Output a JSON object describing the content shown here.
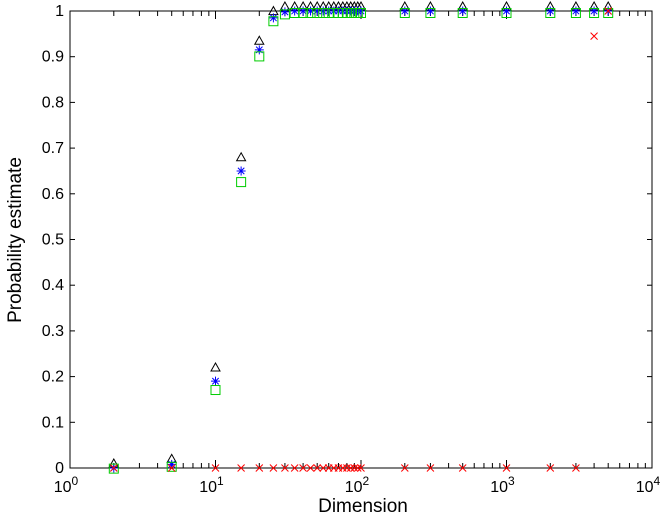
{
  "chart_data": {
    "type": "scatter",
    "xlabel": "Dimension",
    "ylabel": "Probability estimate",
    "xscale": "log",
    "xlim": [
      1,
      10000
    ],
    "ylim": [
      0,
      1
    ],
    "grid": false,
    "x_ticks": [
      {
        "value": 1,
        "base": "10",
        "exp": "0"
      },
      {
        "value": 10,
        "base": "10",
        "exp": "1"
      },
      {
        "value": 100,
        "base": "10",
        "exp": "2"
      },
      {
        "value": 1000,
        "base": "10",
        "exp": "3"
      },
      {
        "value": 10000,
        "base": "10",
        "exp": "4"
      }
    ],
    "y_ticks": [
      {
        "value": 0,
        "label": "0"
      },
      {
        "value": 0.1,
        "label": "0.1"
      },
      {
        "value": 0.2,
        "label": "0.2"
      },
      {
        "value": 0.3,
        "label": "0.3"
      },
      {
        "value": 0.4,
        "label": "0.4"
      },
      {
        "value": 0.5,
        "label": "0.5"
      },
      {
        "value": 0.6,
        "label": "0.6"
      },
      {
        "value": 0.7,
        "label": "0.7"
      },
      {
        "value": 0.8,
        "label": "0.8"
      },
      {
        "value": 0.9,
        "label": "0.9"
      },
      {
        "value": 1,
        "label": "1"
      }
    ],
    "series": [
      {
        "marker": "triangle",
        "color": "#000000",
        "x": [
          2,
          5,
          10,
          15,
          20,
          25,
          30,
          35,
          40,
          45,
          50,
          55,
          60,
          65,
          70,
          75,
          80,
          85,
          90,
          95,
          100,
          200,
          300,
          500,
          1000,
          2000,
          3000,
          4000,
          5000
        ],
        "y": [
          0,
          0.01,
          0.21,
          0.67,
          0.925,
          0.99,
          1,
          1,
          1,
          1,
          1,
          1,
          1,
          1,
          1,
          1,
          1,
          1,
          1,
          1,
          1,
          1,
          1,
          1,
          1,
          1,
          1,
          1,
          1
        ]
      },
      {
        "marker": "asterisk",
        "color": "#0000ff",
        "x": [
          2,
          5,
          10,
          15,
          20,
          25,
          30,
          35,
          40,
          45,
          50,
          55,
          60,
          65,
          70,
          75,
          80,
          85,
          90,
          95,
          100,
          200,
          300,
          500,
          1000,
          2000,
          3000,
          4000,
          5000
        ],
        "y": [
          0,
          0.008,
          0.19,
          0.65,
          0.915,
          0.985,
          0.998,
          1,
          1,
          1,
          1,
          1,
          1,
          1,
          1,
          1,
          1,
          1,
          1,
          1,
          1,
          1,
          1,
          1,
          1,
          1,
          1,
          1,
          1
        ]
      },
      {
        "marker": "square",
        "color": "#00cc00",
        "x": [
          2,
          5,
          10,
          15,
          20,
          25,
          30,
          35,
          40,
          45,
          50,
          55,
          60,
          65,
          70,
          75,
          80,
          85,
          90,
          95,
          100,
          200,
          300,
          500,
          1000,
          2000,
          3000,
          4000,
          5000
        ],
        "y": [
          0.003,
          0.007,
          0.175,
          0.63,
          0.905,
          0.982,
          0.997,
          1,
          1,
          1,
          1,
          1,
          1,
          1,
          1,
          1,
          1,
          1,
          1,
          1,
          1,
          1,
          1,
          1,
          1,
          1,
          1,
          1,
          1
        ]
      },
      {
        "marker": "x",
        "color": "#ff0000",
        "x": [
          2,
          5,
          10,
          15,
          20,
          25,
          30,
          35,
          40,
          45,
          50,
          55,
          60,
          65,
          70,
          75,
          80,
          85,
          90,
          95,
          100,
          200,
          300,
          500,
          1000,
          2000,
          3000,
          4000,
          5000
        ],
        "y": [
          0,
          0,
          0,
          0,
          0,
          0,
          0,
          0,
          0,
          0,
          0,
          0,
          0,
          0,
          0,
          0,
          0,
          0,
          0,
          0,
          0,
          0,
          0,
          0,
          0,
          0,
          0,
          0.945,
          1
        ]
      }
    ]
  }
}
